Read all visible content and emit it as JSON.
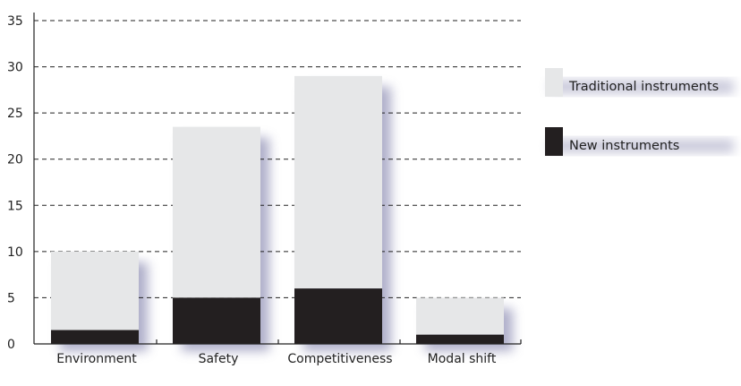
{
  "chart_data": {
    "type": "bar",
    "stacked": true,
    "categories": [
      "Environment",
      "Safety",
      "Competitiveness",
      "Modal shift"
    ],
    "series": [
      {
        "name": "New instruments",
        "values": [
          1.5,
          5,
          6,
          1
        ]
      },
      {
        "name": "Traditional instruments",
        "values": [
          8.5,
          18.5,
          23,
          4
        ]
      }
    ],
    "totals": [
      10,
      23.5,
      29,
      5
    ],
    "yticks": [
      "0",
      "5",
      "10",
      "15",
      "20",
      "25",
      "30",
      "35"
    ],
    "ylim": [
      0,
      35
    ],
    "grid": "horizontal dashed",
    "legend_position": "right",
    "colors": {
      "Traditional instruments": "#e6e7e8",
      "New instruments": "#231f20",
      "shadow": "#9494b8"
    }
  }
}
